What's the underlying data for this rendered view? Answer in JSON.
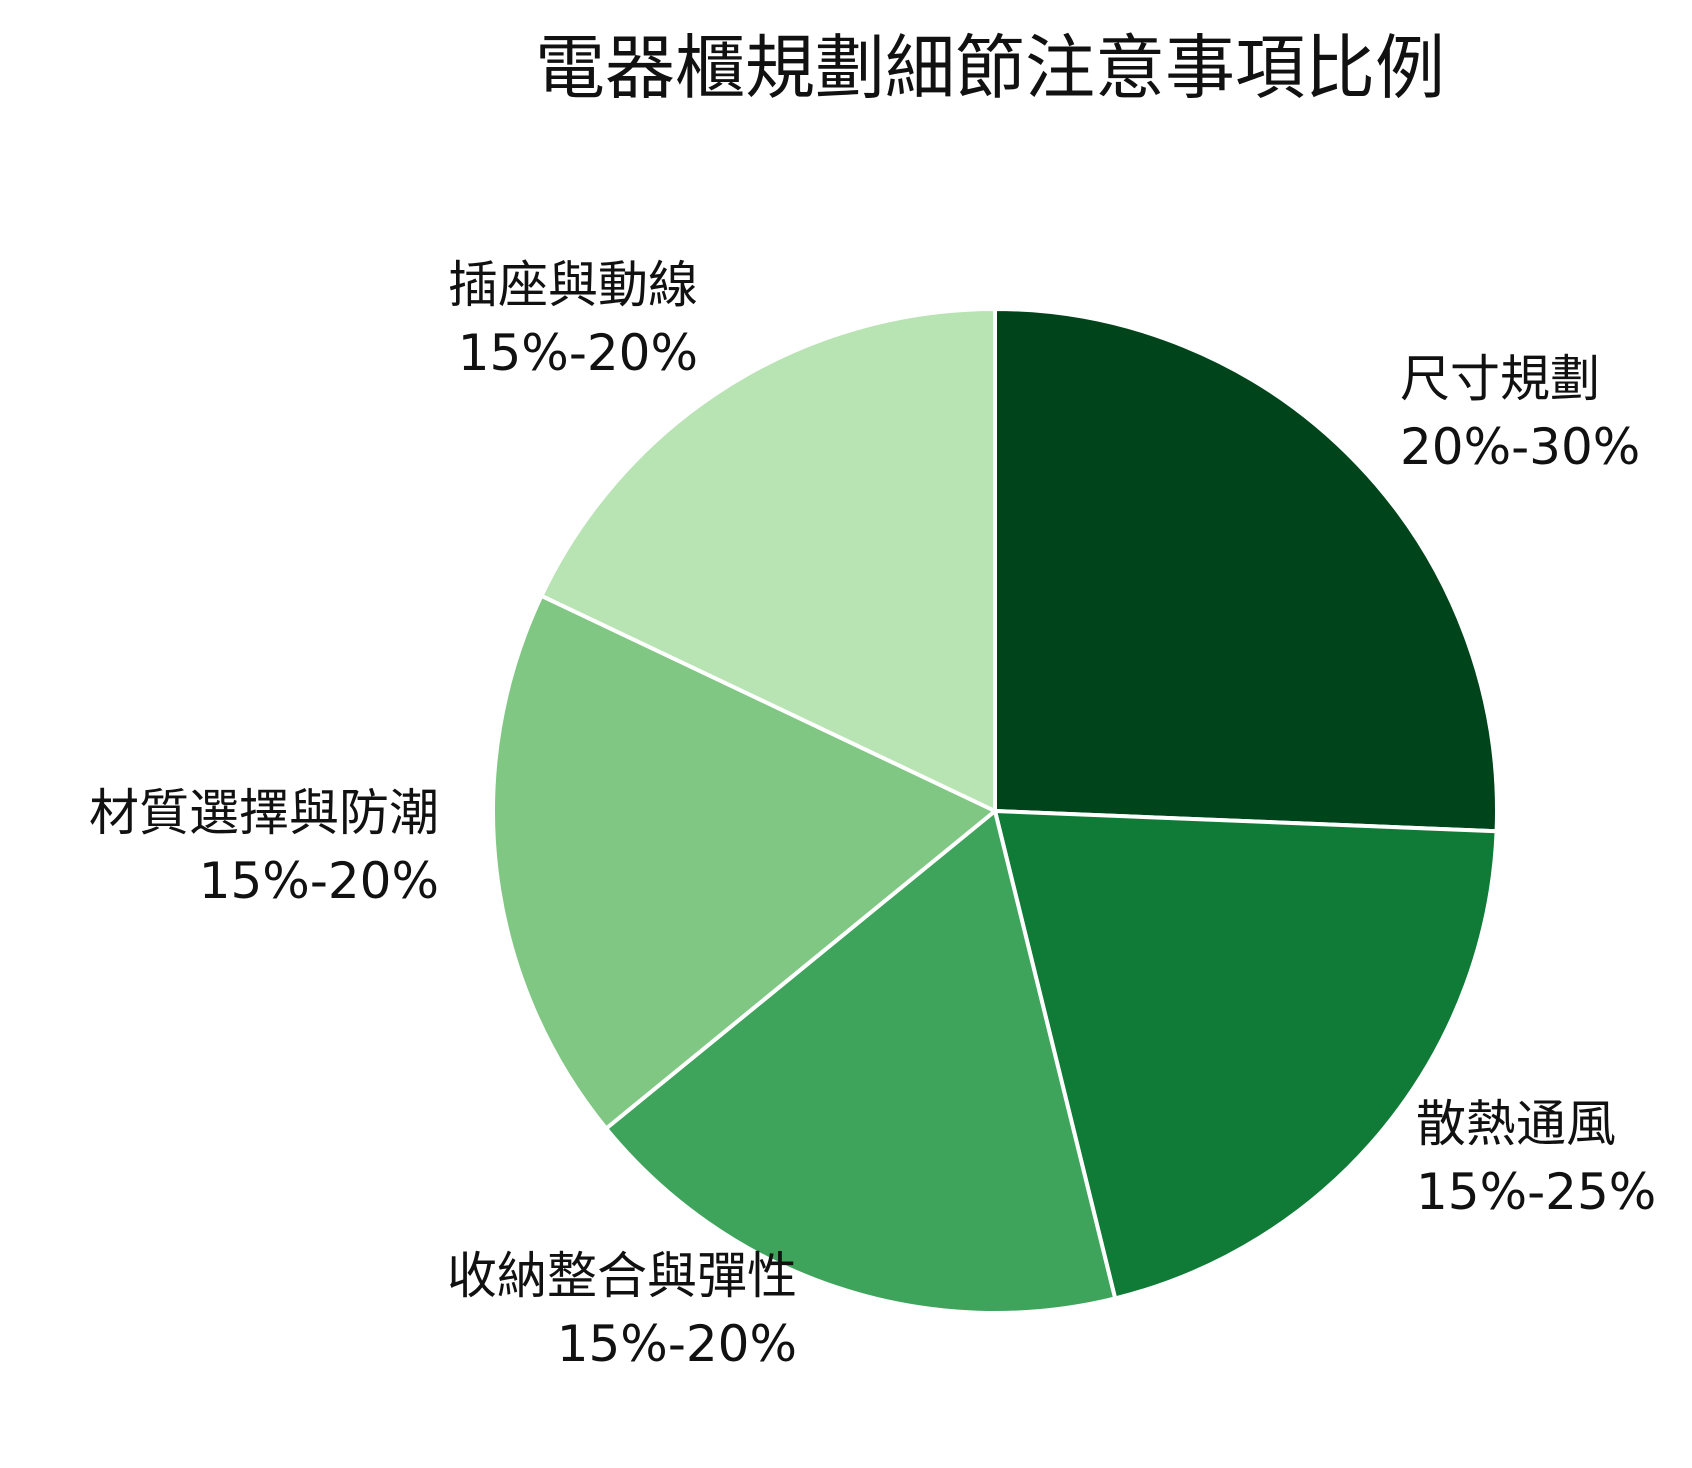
{
  "chart_data": {
    "type": "pie",
    "title": "電器櫃規劃細節注意事項比例",
    "categories": [
      "尺寸規劃",
      "散熱通風",
      "收納整合與彈性",
      "材質選擇與防潮",
      "插座與動線"
    ],
    "values": [
      25,
      20,
      17.5,
      17.5,
      17.5
    ],
    "value_labels": [
      "20%-30%",
      "15%-25%",
      "15%-20%",
      "15%-20%",
      "15%-20%"
    ],
    "colors": [
      "#00441b",
      "#107a37",
      "#3fa45b",
      "#81c784",
      "#b8e3b2"
    ]
  }
}
